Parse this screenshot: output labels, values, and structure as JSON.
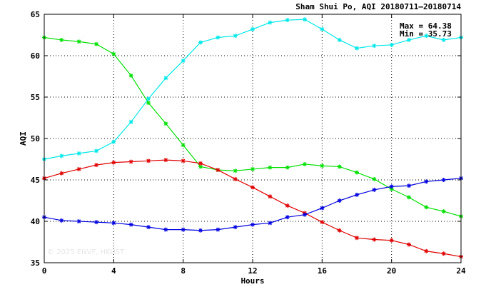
{
  "chart_data": {
    "type": "line",
    "title": "Sham Shui Po, AQI 20180711–20180714",
    "xlabel": "Hours",
    "ylabel": "AQI",
    "xlim": [
      0,
      24
    ],
    "ylim": [
      35,
      65
    ],
    "x_ticks": [
      "0",
      "4",
      "8",
      "12",
      "16",
      "20",
      "24"
    ],
    "y_ticks": [
      "35",
      "40",
      "45",
      "50",
      "55",
      "60",
      "65"
    ],
    "grid": true,
    "legend": "none",
    "max_label": "Max = 64.38",
    "min_label": "Min = 35.73",
    "watermark": "© 2025  ENVF, HKUST",
    "x": [
      0,
      1,
      2,
      3,
      4,
      5,
      6,
      7,
      8,
      9,
      10,
      11,
      12,
      13,
      14,
      15,
      16,
      17,
      18,
      19,
      20,
      21,
      22,
      23,
      24
    ],
    "series": [
      {
        "color": "#00e000",
        "values": [
          62.2,
          61.9,
          61.7,
          61.4,
          60.2,
          57.6,
          54.3,
          51.8,
          49.2,
          46.6,
          46.2,
          46.1,
          46.3,
          46.5,
          46.5,
          46.9,
          46.7,
          46.6,
          45.9,
          45.1,
          43.9,
          42.9,
          41.7,
          41.2,
          40.6
        ]
      },
      {
        "color": "#00e8e8",
        "values": [
          47.5,
          47.9,
          48.2,
          48.5,
          49.6,
          52.0,
          54.8,
          57.3,
          59.4,
          61.6,
          62.2,
          62.4,
          63.2,
          64.0,
          64.3,
          64.38,
          63.2,
          61.9,
          60.9,
          61.2,
          61.3,
          61.9,
          62.4,
          61.9,
          62.2
        ]
      },
      {
        "color": "#e00000",
        "values": [
          45.2,
          45.8,
          46.3,
          46.8,
          47.1,
          47.2,
          47.3,
          47.4,
          47.3,
          47.0,
          46.2,
          45.1,
          44.1,
          43.0,
          41.9,
          41.0,
          39.9,
          38.9,
          38.0,
          37.8,
          37.7,
          37.2,
          36.4,
          36.1,
          35.73
        ]
      },
      {
        "color": "#0000e0",
        "values": [
          40.5,
          40.1,
          40.0,
          39.9,
          39.8,
          39.6,
          39.3,
          39.0,
          39.0,
          38.9,
          39.0,
          39.3,
          39.6,
          39.8,
          40.5,
          40.8,
          41.6,
          42.5,
          43.2,
          43.8,
          44.2,
          44.3,
          44.8,
          45.0,
          45.2
        ]
      }
    ]
  }
}
